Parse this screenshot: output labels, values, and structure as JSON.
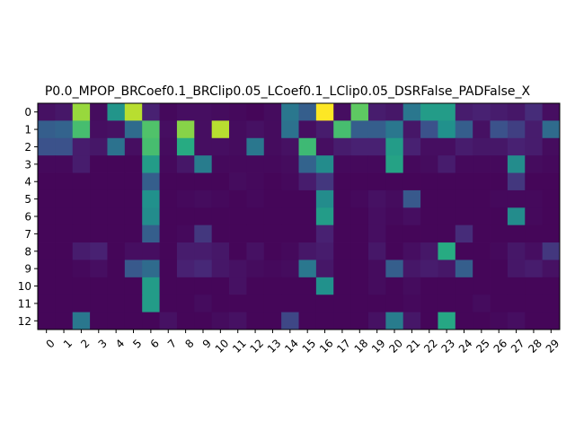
{
  "chart_data": {
    "type": "heatmap",
    "title": "P0.0_MPOP_BRCoef0.1_BRClip0.05_LCoef0.1_LClip0.05_DSRFalse_PADFalse_X",
    "xlabel": "",
    "ylabel": "",
    "colormap": "viridis",
    "vmin": 0,
    "vmax": 1,
    "x_ticks": [
      "0",
      "1",
      "2",
      "3",
      "4",
      "5",
      "6",
      "7",
      "8",
      "9",
      "10",
      "11",
      "12",
      "13",
      "14",
      "15",
      "16",
      "17",
      "18",
      "19",
      "20",
      "21",
      "22",
      "23",
      "24",
      "25",
      "26",
      "27",
      "28",
      "29"
    ],
    "y_ticks": [
      "0",
      "1",
      "2",
      "3",
      "4",
      "5",
      "6",
      "7",
      "8",
      "9",
      "10",
      "11",
      "12"
    ],
    "values": [
      [
        0.06,
        0.08,
        0.85,
        0.04,
        0.52,
        0.9,
        0.12,
        0.03,
        0.05,
        0.05,
        0.04,
        0.03,
        0.02,
        0.04,
        0.4,
        0.3,
        1.0,
        0.05,
        0.75,
        0.1,
        0.08,
        0.4,
        0.55,
        0.55,
        0.1,
        0.12,
        0.1,
        0.08,
        0.15,
        0.05
      ],
      [
        0.3,
        0.32,
        0.7,
        0.05,
        0.06,
        0.35,
        0.72,
        0.05,
        0.82,
        0.05,
        0.9,
        0.04,
        0.06,
        0.04,
        0.38,
        0.05,
        0.1,
        0.7,
        0.3,
        0.3,
        0.4,
        0.08,
        0.25,
        0.5,
        0.3,
        0.06,
        0.25,
        0.2,
        0.1,
        0.35
      ],
      [
        0.25,
        0.25,
        0.1,
        0.08,
        0.38,
        0.05,
        0.7,
        0.04,
        0.62,
        0.05,
        0.05,
        0.04,
        0.4,
        0.04,
        0.06,
        0.68,
        0.05,
        0.1,
        0.12,
        0.12,
        0.55,
        0.12,
        0.05,
        0.05,
        0.1,
        0.08,
        0.08,
        0.12,
        0.1,
        0.04
      ],
      [
        0.03,
        0.03,
        0.1,
        0.02,
        0.02,
        0.02,
        0.55,
        0.03,
        0.08,
        0.42,
        0.03,
        0.03,
        0.03,
        0.03,
        0.04,
        0.32,
        0.48,
        0.03,
        0.03,
        0.03,
        0.58,
        0.03,
        0.04,
        0.1,
        0.03,
        0.03,
        0.03,
        0.48,
        0.04,
        0.03
      ],
      [
        0.02,
        0.02,
        0.02,
        0.02,
        0.02,
        0.02,
        0.3,
        0.02,
        0.02,
        0.02,
        0.02,
        0.04,
        0.03,
        0.02,
        0.03,
        0.1,
        0.18,
        0.02,
        0.02,
        0.02,
        0.02,
        0.02,
        0.02,
        0.02,
        0.02,
        0.02,
        0.02,
        0.18,
        0.02,
        0.02
      ],
      [
        0.02,
        0.02,
        0.02,
        0.02,
        0.02,
        0.02,
        0.5,
        0.02,
        0.03,
        0.04,
        0.03,
        0.02,
        0.03,
        0.02,
        0.02,
        0.02,
        0.48,
        0.02,
        0.03,
        0.06,
        0.04,
        0.28,
        0.02,
        0.02,
        0.02,
        0.02,
        0.03,
        0.03,
        0.03,
        0.02
      ],
      [
        0.02,
        0.02,
        0.02,
        0.02,
        0.02,
        0.02,
        0.48,
        0.02,
        0.02,
        0.02,
        0.02,
        0.02,
        0.02,
        0.02,
        0.02,
        0.02,
        0.55,
        0.02,
        0.02,
        0.05,
        0.03,
        0.05,
        0.02,
        0.02,
        0.02,
        0.02,
        0.02,
        0.48,
        0.03,
        0.02
      ],
      [
        0.02,
        0.02,
        0.02,
        0.02,
        0.02,
        0.02,
        0.3,
        0.02,
        0.03,
        0.18,
        0.02,
        0.02,
        0.02,
        0.02,
        0.02,
        0.02,
        0.12,
        0.02,
        0.02,
        0.05,
        0.02,
        0.02,
        0.02,
        0.02,
        0.15,
        0.02,
        0.02,
        0.02,
        0.02,
        0.02
      ],
      [
        0.02,
        0.02,
        0.1,
        0.12,
        0.02,
        0.05,
        0.05,
        0.02,
        0.1,
        0.1,
        0.08,
        0.02,
        0.06,
        0.02,
        0.03,
        0.08,
        0.1,
        0.02,
        0.02,
        0.08,
        0.02,
        0.05,
        0.08,
        0.62,
        0.02,
        0.02,
        0.03,
        0.08,
        0.05,
        0.18
      ],
      [
        0.02,
        0.02,
        0.03,
        0.05,
        0.02,
        0.28,
        0.35,
        0.02,
        0.12,
        0.14,
        0.08,
        0.06,
        0.04,
        0.03,
        0.04,
        0.4,
        0.08,
        0.02,
        0.02,
        0.04,
        0.3,
        0.08,
        0.1,
        0.08,
        0.3,
        0.02,
        0.02,
        0.08,
        0.1,
        0.06
      ],
      [
        0.02,
        0.02,
        0.02,
        0.02,
        0.02,
        0.02,
        0.55,
        0.02,
        0.02,
        0.02,
        0.02,
        0.06,
        0.02,
        0.02,
        0.02,
        0.02,
        0.5,
        0.02,
        0.02,
        0.04,
        0.02,
        0.04,
        0.02,
        0.02,
        0.02,
        0.02,
        0.02,
        0.02,
        0.02,
        0.02
      ],
      [
        0.02,
        0.02,
        0.02,
        0.02,
        0.02,
        0.02,
        0.55,
        0.02,
        0.02,
        0.04,
        0.02,
        0.02,
        0.02,
        0.02,
        0.02,
        0.02,
        0.02,
        0.02,
        0.02,
        0.02,
        0.02,
        0.03,
        0.02,
        0.02,
        0.02,
        0.04,
        0.02,
        0.02,
        0.02,
        0.02
      ],
      [
        0.02,
        0.02,
        0.4,
        0.02,
        0.02,
        0.02,
        0.02,
        0.06,
        0.02,
        0.02,
        0.04,
        0.06,
        0.02,
        0.02,
        0.22,
        0.02,
        0.02,
        0.02,
        0.02,
        0.06,
        0.42,
        0.08,
        0.02,
        0.6,
        0.02,
        0.02,
        0.03,
        0.05,
        0.02,
        0.02
      ]
    ]
  }
}
